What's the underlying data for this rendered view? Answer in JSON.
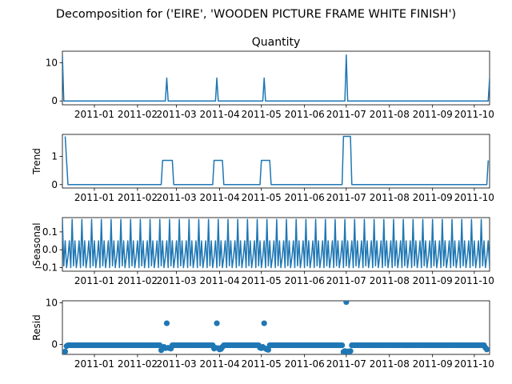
{
  "figure_title": "Decomposition for ('EIRE', 'WOODEN PICTURE FRAME WHITE FINISH')",
  "colors": {
    "line": "#1f77b4",
    "axis": "#000000",
    "background": "#ffffff"
  },
  "x_axis": {
    "range": [
      "2010-12-09",
      "2011-10-12"
    ],
    "tick_labels": [
      "2011-01",
      "2011-02",
      "2011-03",
      "2011-04",
      "2011-05",
      "2011-06",
      "2011-07",
      "2011-08",
      "2011-09",
      "2011-10"
    ],
    "tick_dates": [
      "2011-01-01",
      "2011-02-01",
      "2011-03-01",
      "2011-04-01",
      "2011-05-01",
      "2011-06-01",
      "2011-07-01",
      "2011-08-01",
      "2011-09-01",
      "2011-10-01"
    ]
  },
  "chart_data": [
    {
      "type": "line",
      "title": "Quantity",
      "ylabel": "",
      "ylim": [
        -1,
        13
      ],
      "y_ticks": [
        0,
        10
      ],
      "x": [
        "2010-12-09",
        "2010-12-10",
        "2011-02-21",
        "2011-02-22",
        "2011-02-23",
        "2011-03-29",
        "2011-03-30",
        "2011-03-31",
        "2011-05-02",
        "2011-05-03",
        "2011-05-04",
        "2011-06-30",
        "2011-07-01",
        "2011-07-02",
        "2011-10-11",
        "2011-10-12"
      ],
      "values": [
        12,
        0,
        0,
        6,
        0,
        0,
        6,
        0,
        0,
        6,
        0,
        0,
        12,
        0,
        0,
        6
      ]
    },
    {
      "type": "line",
      "title": "",
      "ylabel": "Trend",
      "ylim": [
        -0.12,
        1.78
      ],
      "y_ticks": [
        0,
        1
      ],
      "x": [
        "2010-12-11",
        "2010-12-13",
        "2011-02-18",
        "2011-02-19",
        "2011-02-26",
        "2011-02-27",
        "2011-03-27",
        "2011-03-28",
        "2011-04-03",
        "2011-04-04",
        "2011-04-30",
        "2011-05-01",
        "2011-05-07",
        "2011-05-08",
        "2011-06-28",
        "2011-06-29",
        "2011-07-04",
        "2011-07-05",
        "2011-10-10",
        "2011-10-11"
      ],
      "values": [
        1.71,
        0,
        0,
        0.857,
        0.857,
        0,
        0,
        0.857,
        0.857,
        0,
        0,
        0.857,
        0.857,
        0,
        0,
        1.71,
        1.71,
        0,
        0,
        0.857
      ]
    },
    {
      "type": "line",
      "title": "",
      "ylabel": "Seasonal",
      "ylim": [
        -0.12,
        0.18
      ],
      "y_ticks": [
        -0.1,
        0.0,
        0.1
      ],
      "tick_labels": [
        "−0.1",
        "0.0",
        "0.1"
      ],
      "period_days": 7,
      "start_date": "2010-12-09",
      "end_date": "2011-10-12",
      "pattern": [
        0.17,
        -0.09,
        0.05,
        -0.1,
        -0.04,
        0.05,
        -0.1
      ]
    },
    {
      "type": "scatter",
      "title": "",
      "ylabel": "Resid",
      "ylim": [
        -2.4,
        10.5
      ],
      "y_ticks": [
        0,
        10
      ],
      "start_date": "2010-12-11",
      "end_date": "2011-10-10",
      "baseline": -0.2,
      "points": [
        {
          "x": "2010-12-11",
          "y": -1.7
        },
        {
          "x": "2010-12-12",
          "y": -0.4
        },
        {
          "x": "2011-02-18",
          "y": -1.4
        },
        {
          "x": "2011-02-19",
          "y": -0.8
        },
        {
          "x": "2011-02-20",
          "y": -0.6
        },
        {
          "x": "2011-02-21",
          "y": -0.9
        },
        {
          "x": "2011-02-22",
          "y": 5.1
        },
        {
          "x": "2011-02-23",
          "y": -0.8
        },
        {
          "x": "2011-02-24",
          "y": -0.9
        },
        {
          "x": "2011-02-25",
          "y": -1.0
        },
        {
          "x": "2011-03-28",
          "y": -1.0
        },
        {
          "x": "2011-03-29",
          "y": -0.8
        },
        {
          "x": "2011-03-30",
          "y": 5.1
        },
        {
          "x": "2011-03-31",
          "y": -0.9
        },
        {
          "x": "2011-04-01",
          "y": -1.2
        },
        {
          "x": "2011-04-02",
          "y": -1.1
        },
        {
          "x": "2011-04-03",
          "y": -0.6
        },
        {
          "x": "2011-04-30",
          "y": -0.8
        },
        {
          "x": "2011-05-01",
          "y": -0.9
        },
        {
          "x": "2011-05-02",
          "y": -0.6
        },
        {
          "x": "2011-05-03",
          "y": 5.1
        },
        {
          "x": "2011-05-04",
          "y": -1.0
        },
        {
          "x": "2011-05-05",
          "y": -1.2
        },
        {
          "x": "2011-05-06",
          "y": -1.3
        },
        {
          "x": "2011-06-29",
          "y": -1.8
        },
        {
          "x": "2011-06-30",
          "y": -1.6
        },
        {
          "x": "2011-07-01",
          "y": 10.2
        },
        {
          "x": "2011-07-02",
          "y": -1.7
        },
        {
          "x": "2011-07-03",
          "y": -1.8
        },
        {
          "x": "2011-07-04",
          "y": -1.6
        },
        {
          "x": "2011-10-09",
          "y": -0.8
        },
        {
          "x": "2011-10-10",
          "y": -1.2
        }
      ]
    }
  ]
}
